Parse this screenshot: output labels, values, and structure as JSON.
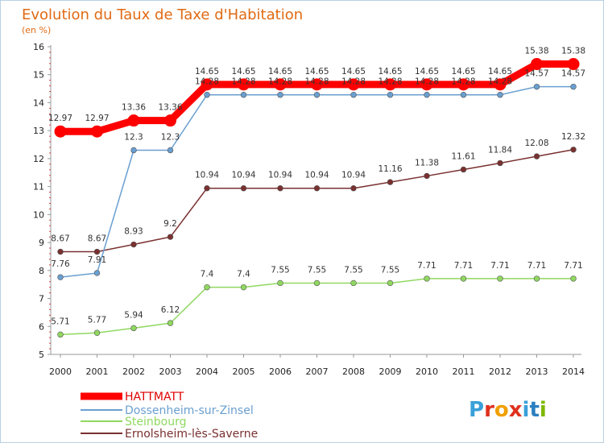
{
  "colors": {
    "title": "#e06a14",
    "frame": "#b9d1e4",
    "grid": "#c8d8e8"
  },
  "logo": {
    "text": "Proxiti",
    "colors": [
      "#3aa0d8",
      "#e0301e",
      "#f0a000",
      "#e0301e",
      "#3aa0d8",
      "#2a7fc0",
      "#7fb800"
    ]
  },
  "chart_data": {
    "type": "line",
    "title": "Evolution du Taux de Taxe d'Habitation",
    "subtitle": "(en %)",
    "xlabel": "",
    "ylabel": "",
    "x": [
      "2000",
      "2001",
      "2002",
      "2003",
      "2004",
      "2005",
      "2006",
      "2007",
      "2008",
      "2009",
      "2010",
      "2011",
      "2012",
      "2013",
      "2014"
    ],
    "ylim": [
      5,
      16
    ],
    "yticks": [
      "5",
      "6",
      "7",
      "8",
      "9",
      "10",
      "11",
      "12",
      "13",
      "14",
      "15",
      "16"
    ],
    "grid": false,
    "legend_position": "bottom-left",
    "series": [
      {
        "name": "HATTMATT",
        "color": "#ff0000",
        "values": [
          12.97,
          12.97,
          13.36,
          13.36,
          14.65,
          14.65,
          14.65,
          14.65,
          14.65,
          14.65,
          14.65,
          14.65,
          14.65,
          15.38,
          15.38
        ],
        "labels": [
          "12.97",
          "12.97",
          "13.36",
          "13.36",
          "14.65",
          "14.65",
          "14.65",
          "14.65",
          "14.65",
          "14.65",
          "14.65",
          "14.65",
          "14.65",
          "15.38",
          "15.38"
        ]
      },
      {
        "name": "Dossenheim-sur-Zinsel",
        "color": "#6a9fd0",
        "values": [
          7.76,
          7.91,
          12.3,
          12.3,
          14.28,
          14.28,
          14.28,
          14.28,
          14.28,
          14.28,
          14.28,
          14.28,
          14.28,
          14.57,
          14.57
        ],
        "labels": [
          "7.76",
          "7.91",
          "12.3",
          "12.3",
          "14.28",
          "14.28",
          "14.28",
          "14.28",
          "14.28",
          "14.28",
          "14.28",
          "14.28",
          "14.28",
          "14.57",
          "14.57"
        ]
      },
      {
        "name": "Steinbourg",
        "color": "#90d860",
        "values": [
          5.71,
          5.77,
          5.94,
          6.12,
          7.4,
          7.4,
          7.55,
          7.55,
          7.55,
          7.55,
          7.71,
          7.71,
          7.71,
          7.71,
          7.71
        ],
        "labels": [
          "5.71",
          "5.77",
          "5.94",
          "6.12",
          "7.4",
          "7.4",
          "7.55",
          "7.55",
          "7.55",
          "7.55",
          "7.71",
          "7.71",
          "7.71",
          "7.71",
          "7.71"
        ]
      },
      {
        "name": "Ernolsheim-lès-Saverne",
        "color": "#7a3030",
        "values": [
          8.67,
          8.67,
          8.93,
          9.2,
          10.94,
          10.94,
          10.94,
          10.94,
          10.94,
          11.16,
          11.38,
          11.61,
          11.84,
          12.08,
          12.32
        ],
        "labels": [
          "8.67",
          "8.67",
          "8.93",
          "9.2",
          "10.94",
          "10.94",
          "10.94",
          "10.94",
          "10.94",
          "11.16",
          "11.38",
          "11.61",
          "11.84",
          "12.08",
          "12.32"
        ]
      }
    ]
  }
}
